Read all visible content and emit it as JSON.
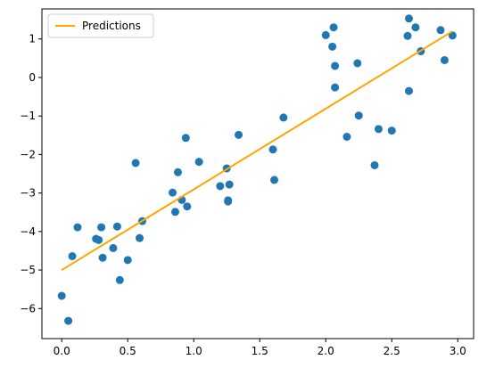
{
  "chart_data": {
    "type": "scatter",
    "title": "",
    "xlabel": "",
    "ylabel": "",
    "xlim": [
      -0.15,
      3.12
    ],
    "ylim": [
      -6.78,
      1.78
    ],
    "xticks": [
      0.0,
      0.5,
      1.0,
      1.5,
      2.0,
      2.5,
      3.0
    ],
    "xtick_labels": [
      "0.0",
      "0.5",
      "1.0",
      "1.5",
      "2.0",
      "2.5",
      "3.0"
    ],
    "yticks": [
      1,
      0,
      -1,
      -2,
      -3,
      -4,
      -5,
      -6
    ],
    "ytick_labels": [
      "1",
      "0",
      "−1",
      "−2",
      "−3",
      "−4",
      "−5",
      "−6"
    ],
    "grid": false,
    "legend": {
      "position": "top-left",
      "entries": [
        "Predictions"
      ]
    },
    "colors": {
      "points": "#1f77b4",
      "line": "#ffa500"
    },
    "series": [
      {
        "type": "scatter",
        "points": [
          [
            0.0,
            -5.67
          ],
          [
            0.05,
            -6.32
          ],
          [
            0.08,
            -4.64
          ],
          [
            0.12,
            -3.89
          ],
          [
            0.26,
            -4.19
          ],
          [
            0.28,
            -4.22
          ],
          [
            0.3,
            -3.89
          ],
          [
            0.31,
            -4.68
          ],
          [
            0.39,
            -4.43
          ],
          [
            0.42,
            -3.87
          ],
          [
            0.44,
            -5.26
          ],
          [
            0.5,
            -4.74
          ],
          [
            0.56,
            -2.22
          ],
          [
            0.59,
            -4.17
          ],
          [
            0.61,
            -3.73
          ],
          [
            0.84,
            -2.99
          ],
          [
            0.86,
            -3.49
          ],
          [
            0.88,
            -2.46
          ],
          [
            0.91,
            -3.18
          ],
          [
            0.94,
            -1.57
          ],
          [
            0.95,
            -3.35
          ],
          [
            1.04,
            -2.19
          ],
          [
            1.2,
            -2.82
          ],
          [
            1.25,
            -2.36
          ],
          [
            1.26,
            -3.22
          ],
          [
            1.26,
            -3.19
          ],
          [
            1.27,
            -2.78
          ],
          [
            1.34,
            -1.49
          ],
          [
            1.6,
            -1.87
          ],
          [
            1.61,
            -2.66
          ],
          [
            1.68,
            -1.04
          ],
          [
            2.0,
            1.1
          ],
          [
            2.05,
            0.8
          ],
          [
            2.06,
            1.3
          ],
          [
            2.07,
            0.3
          ],
          [
            2.07,
            -0.26
          ],
          [
            2.16,
            -1.54
          ],
          [
            2.24,
            0.37
          ],
          [
            2.25,
            -0.99
          ],
          [
            2.37,
            -2.28
          ],
          [
            2.4,
            -1.34
          ],
          [
            2.5,
            -1.38
          ],
          [
            2.62,
            1.08
          ],
          [
            2.63,
            1.53
          ],
          [
            2.63,
            -0.35
          ],
          [
            2.68,
            1.3
          ],
          [
            2.72,
            0.68
          ],
          [
            2.87,
            1.23
          ],
          [
            2.9,
            0.45
          ],
          [
            2.96,
            1.09
          ]
        ]
      },
      {
        "type": "line",
        "name": "Predictions",
        "points": [
          [
            0.0,
            -5.0
          ],
          [
            2.96,
            1.2
          ]
        ]
      }
    ]
  }
}
